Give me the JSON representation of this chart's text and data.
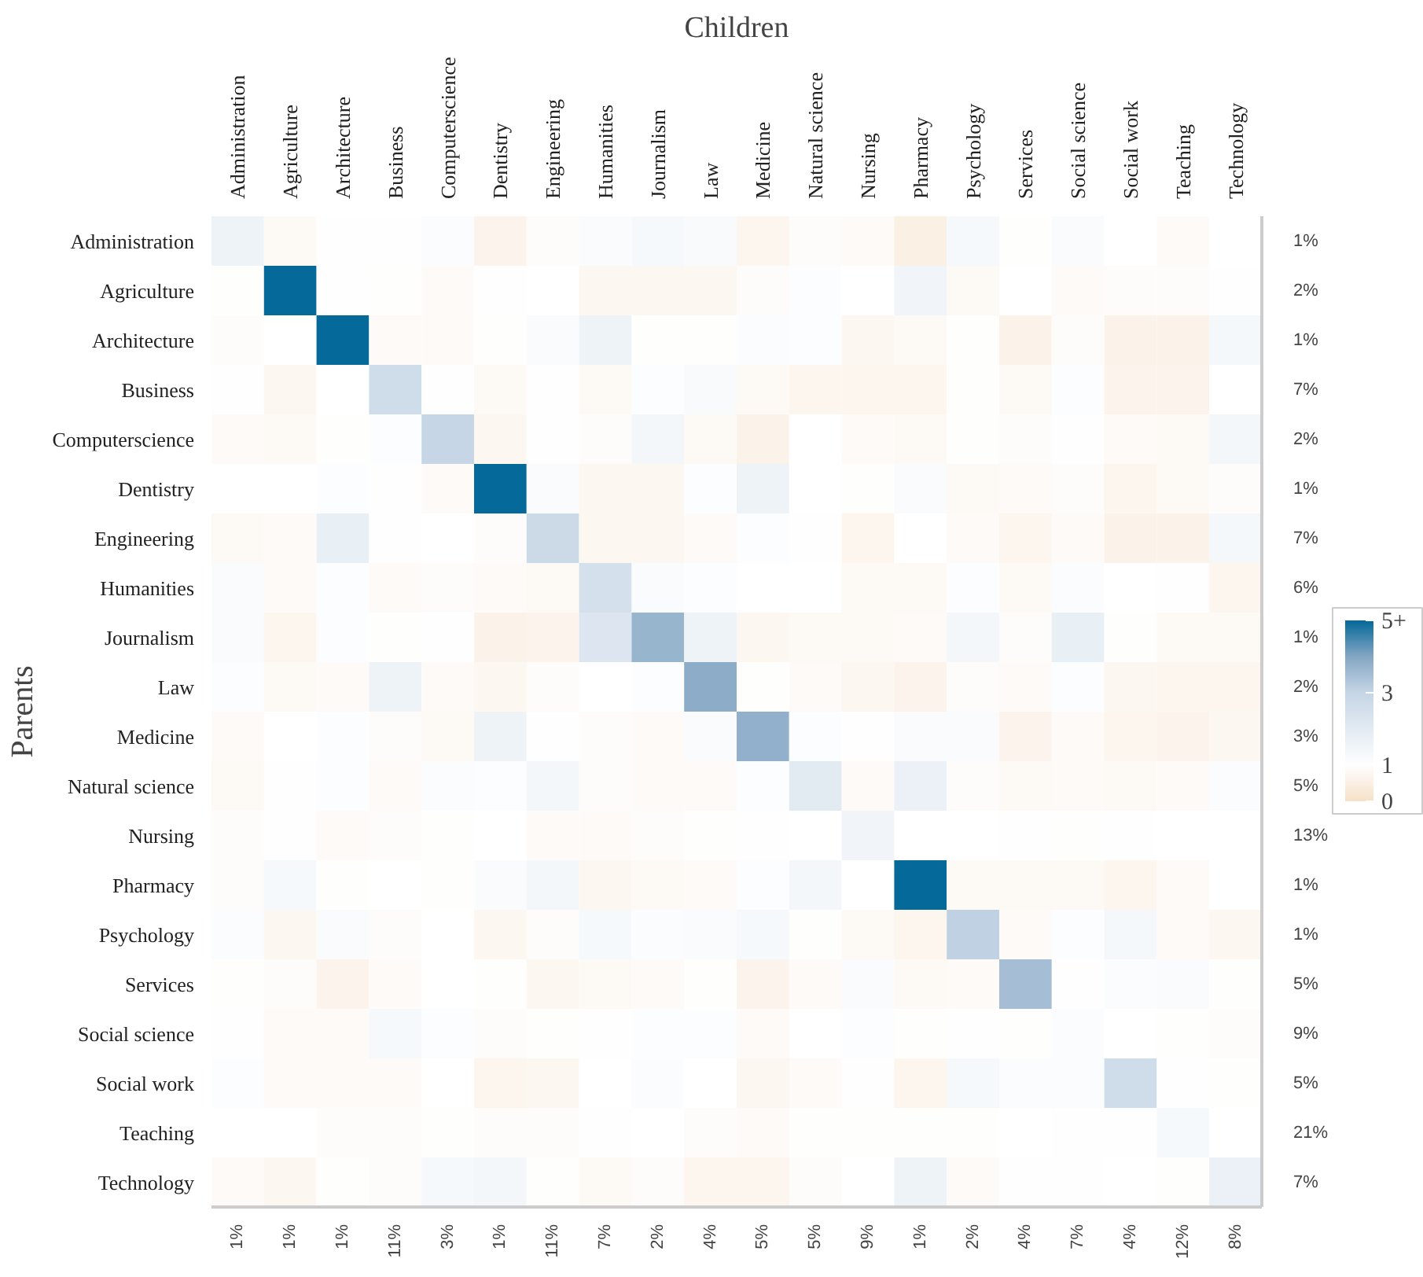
{
  "chart_data": {
    "type": "heatmap",
    "title": "Children",
    "ylabel": "Parents",
    "categories": [
      "Administration",
      "Agriculture",
      "Architecture",
      "Business",
      "Computerscience",
      "Dentistry",
      "Engineering",
      "Humanities",
      "Journalism",
      "Law",
      "Medicine",
      "Natural science",
      "Nursing",
      "Pharmacy",
      "Psychology",
      "Services",
      "Social science",
      "Social work",
      "Teaching",
      "Technology"
    ],
    "y_categories": [
      "Administration",
      "Agriculture",
      "Architecture",
      "Business",
      "Computerscience",
      "Dentistry",
      "Engineering",
      "Humanities",
      "Journalism",
      "Law",
      "Medicine",
      "Natural science",
      "Nursing",
      "Pharmacy",
      "Psychology",
      "Services",
      "Social science",
      "Social work",
      "Teaching",
      "Technology"
    ],
    "y2_categories": [
      "1%",
      "2%",
      "1%",
      "7%",
      "2%",
      "1%",
      "7%",
      "6%",
      "1%",
      "2%",
      "3%",
      "5%",
      "13%",
      "1%",
      "1%",
      "5%",
      "9%",
      "5%",
      "21%",
      "7%"
    ],
    "cells": [
      [
        1.6,
        0.8,
        1.05,
        1.05,
        1.15,
        0.65,
        0.9,
        1.2,
        1.3,
        1.25,
        0.7,
        0.9,
        0.85,
        0.5,
        1.3,
        0.95,
        1.2,
        1.0,
        0.85,
        1.0
      ],
      [
        0.95,
        5,
        1.05,
        0.95,
        0.85,
        1.05,
        1.0,
        0.75,
        0.75,
        0.75,
        0.9,
        1.1,
        1.0,
        1.5,
        0.8,
        1.0,
        0.85,
        0.9,
        0.9,
        1.05
      ],
      [
        0.9,
        1.0,
        5,
        0.85,
        0.85,
        0.95,
        1.2,
        1.6,
        0.95,
        0.95,
        1.15,
        1.1,
        0.75,
        0.8,
        0.95,
        0.6,
        0.9,
        0.6,
        0.6,
        1.35
      ],
      [
        1.05,
        0.75,
        1.0,
        2.7,
        1.05,
        0.8,
        1.05,
        0.8,
        1.1,
        1.25,
        0.8,
        0.7,
        0.7,
        0.7,
        0.95,
        0.8,
        1.1,
        0.65,
        0.65,
        1.0
      ],
      [
        0.85,
        0.8,
        0.95,
        1.1,
        3.0,
        0.75,
        1.05,
        0.9,
        1.4,
        0.8,
        0.6,
        1.0,
        0.85,
        0.8,
        0.95,
        0.9,
        1.05,
        0.85,
        0.8,
        1.4
      ],
      [
        1.0,
        1.0,
        1.1,
        1.05,
        0.85,
        5,
        1.2,
        0.75,
        0.75,
        1.1,
        1.6,
        1.0,
        0.95,
        1.2,
        0.8,
        0.85,
        0.9,
        0.7,
        0.8,
        0.9
      ],
      [
        0.8,
        0.85,
        1.8,
        1.05,
        1.0,
        0.9,
        2.8,
        0.75,
        0.75,
        0.85,
        1.1,
        1.05,
        0.7,
        1.0,
        0.85,
        0.7,
        0.85,
        0.6,
        0.6,
        1.35
      ],
      [
        1.2,
        0.85,
        1.1,
        0.85,
        0.9,
        0.85,
        0.8,
        2.5,
        1.2,
        1.1,
        1.0,
        1.0,
        0.8,
        0.8,
        1.1,
        0.8,
        1.15,
        1.0,
        1.05,
        0.7
      ],
      [
        1.2,
        0.7,
        1.1,
        0.95,
        1.05,
        0.6,
        0.65,
        2.2,
        3.7,
        1.6,
        0.75,
        0.8,
        0.8,
        0.85,
        1.4,
        0.9,
        1.8,
        0.95,
        0.8,
        0.8
      ],
      [
        1.1,
        0.8,
        0.85,
        1.6,
        0.85,
        0.75,
        0.9,
        1.0,
        1.1,
        3.9,
        0.95,
        0.85,
        0.75,
        0.65,
        0.9,
        0.85,
        1.1,
        0.75,
        0.7,
        0.7
      ],
      [
        0.85,
        1.0,
        1.1,
        0.9,
        0.8,
        1.6,
        1.05,
        0.9,
        0.85,
        1.2,
        3.8,
        1.1,
        1.05,
        1.2,
        1.2,
        0.65,
        0.85,
        0.7,
        0.65,
        0.75
      ],
      [
        0.8,
        1.05,
        1.1,
        0.85,
        1.15,
        1.1,
        1.4,
        0.9,
        0.85,
        0.85,
        1.1,
        2.0,
        0.85,
        1.7,
        0.9,
        0.8,
        0.85,
        0.8,
        0.85,
        1.15
      ],
      [
        0.9,
        1.05,
        0.85,
        0.9,
        0.95,
        1.0,
        0.85,
        0.85,
        0.9,
        0.95,
        1.05,
        1.0,
        1.5,
        1.0,
        1.0,
        1.05,
        0.95,
        1.05,
        1.0,
        1.0
      ],
      [
        0.9,
        1.3,
        0.95,
        1.0,
        0.95,
        1.2,
        1.4,
        0.75,
        0.8,
        0.85,
        1.1,
        1.4,
        1.0,
        5,
        0.8,
        0.8,
        0.8,
        0.7,
        0.85,
        1.0
      ],
      [
        1.15,
        0.75,
        1.2,
        0.9,
        1.0,
        0.75,
        0.9,
        1.3,
        1.15,
        1.2,
        1.3,
        0.95,
        0.8,
        0.7,
        3.1,
        0.85,
        1.1,
        1.35,
        0.85,
        0.75
      ],
      [
        0.95,
        0.9,
        0.65,
        0.85,
        1.0,
        0.95,
        0.75,
        0.8,
        0.85,
        0.95,
        0.65,
        0.85,
        1.2,
        0.8,
        0.85,
        3.5,
        1.05,
        1.15,
        1.2,
        0.95
      ],
      [
        1.05,
        0.85,
        0.85,
        1.3,
        1.1,
        0.9,
        0.95,
        1.05,
        1.1,
        1.1,
        0.85,
        1.0,
        1.1,
        0.95,
        1.05,
        0.95,
        1.15,
        1.0,
        0.95,
        0.9
      ],
      [
        1.1,
        0.85,
        0.85,
        0.85,
        1.0,
        0.7,
        0.75,
        1.0,
        1.15,
        1.0,
        0.75,
        0.85,
        1.05,
        0.7,
        1.3,
        1.15,
        1.15,
        2.7,
        1.05,
        0.95
      ],
      [
        1.0,
        1.0,
        0.9,
        0.9,
        0.95,
        0.9,
        0.9,
        1.05,
        1.0,
        0.9,
        0.85,
        0.95,
        0.95,
        0.95,
        0.95,
        1.0,
        1.05,
        1.05,
        1.3,
        1.0
      ],
      [
        0.85,
        0.75,
        0.95,
        0.9,
        1.3,
        1.4,
        0.95,
        0.8,
        0.9,
        0.7,
        0.7,
        0.9,
        1.0,
        1.6,
        0.85,
        1.05,
        1.05,
        1.0,
        0.95,
        1.7
      ]
    ],
    "clim": [
      0,
      5
    ],
    "cticks": [
      0,
      1,
      3,
      {
        "value": 5,
        "label": "5+"
      }
    ],
    "annotations": [
      "1%",
      "1%",
      "1%",
      "11%",
      "3%",
      "1%",
      "11%",
      "7%",
      "2%",
      "4%",
      "5%",
      "5%",
      "9%",
      "1%",
      "2%",
      "4%",
      "7%",
      "4%",
      "12%",
      "8%"
    ]
  }
}
